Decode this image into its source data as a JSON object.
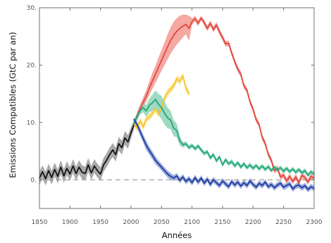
{
  "chart_data": {
    "type": "line",
    "title": "",
    "xlabel": "Années",
    "ylabel": "Emissions Compatibles (GtC par an)",
    "xlim": [
      1850,
      2300
    ],
    "ylim": [
      -5,
      30
    ],
    "x_ticks": [
      "1850",
      "1900",
      "1950",
      "2000",
      "2050",
      "2100",
      "2150",
      "2200",
      "2250",
      "2300"
    ],
    "y_ticks": [
      "0.",
      "10.",
      "20.",
      "30."
    ],
    "grid": false,
    "legend": "none",
    "zero_line": true,
    "series": [
      {
        "color": "#111111",
        "band_color": "#9a9a9a",
        "x": [
          1850,
          1855,
          1860,
          1865,
          1870,
          1875,
          1880,
          1885,
          1890,
          1895,
          1900,
          1905,
          1910,
          1915,
          1920,
          1925,
          1930,
          1935,
          1940,
          1945,
          1950,
          1955,
          1960,
          1965,
          1970,
          1975,
          1980,
          1985,
          1990,
          1995,
          2000,
          2005
        ],
        "values": [
          0.3,
          1.4,
          0.2,
          1.6,
          0.4,
          1.8,
          0.6,
          2.2,
          0.7,
          2.0,
          1.0,
          2.4,
          1.1,
          2.2,
          1.3,
          1.1,
          2.6,
          1.2,
          2.4,
          1.6,
          1.0,
          2.6,
          3.4,
          4.4,
          5.2,
          4.4,
          6.3,
          5.6,
          7.3,
          6.6,
          8.2,
          9.6
        ],
        "band_upper": [
          1.5,
          2.5,
          1.4,
          2.8,
          1.6,
          3.0,
          1.8,
          3.4,
          1.9,
          3.2,
          2.2,
          3.6,
          2.3,
          3.4,
          2.5,
          2.3,
          3.8,
          2.4,
          3.6,
          2.8,
          2.2,
          3.8,
          4.6,
          5.6,
          6.4,
          5.6,
          7.5,
          6.8,
          8.5,
          7.8,
          9.2,
          10.4
        ],
        "band_lower": [
          -0.9,
          0.3,
          -1.0,
          0.4,
          -0.8,
          0.6,
          -0.6,
          1.0,
          -0.5,
          0.8,
          -0.2,
          1.2,
          -0.1,
          1.0,
          0.1,
          -0.1,
          1.4,
          0.0,
          1.2,
          0.4,
          -0.2,
          1.4,
          2.2,
          3.2,
          4.0,
          3.2,
          5.1,
          4.4,
          6.1,
          5.4,
          7.2,
          8.8
        ]
      },
      {
        "color": "#e0473f",
        "band_color": "#f29a93",
        "x": [
          2005,
          2010,
          2015,
          2020,
          2025,
          2030,
          2035,
          2040,
          2045,
          2050,
          2055,
          2060,
          2065,
          2070,
          2075,
          2080,
          2085,
          2090,
          2095,
          2100,
          2105,
          2110,
          2115,
          2120,
          2125,
          2130,
          2135,
          2140,
          2145,
          2150,
          2155,
          2160,
          2165,
          2170,
          2175,
          2180,
          2185,
          2190,
          2195,
          2200,
          2205,
          2210,
          2215,
          2220,
          2225,
          2230,
          2235,
          2240,
          2245,
          2250,
          2255,
          2260,
          2265,
          2270,
          2275,
          2280,
          2285,
          2290,
          2295,
          2300
        ],
        "values": [
          9.8,
          11.2,
          12.4,
          13.5,
          14.6,
          16.0,
          17.2,
          18.4,
          19.6,
          20.8,
          22.0,
          23.2,
          24.3,
          25.2,
          25.9,
          26.4,
          26.8,
          27.1,
          26.4,
          27.6,
          28.1,
          27.3,
          28.2,
          27.4,
          26.4,
          27.3,
          26.2,
          27.0,
          25.8,
          24.8,
          23.7,
          23.8,
          22.1,
          20.6,
          19.3,
          18.4,
          16.4,
          15.6,
          13.6,
          12.3,
          10.5,
          9.6,
          7.4,
          6.3,
          4.4,
          3.4,
          1.6,
          2.0,
          0.5,
          0.8,
          -0.2,
          0.6,
          -0.3,
          0.5,
          -0.5,
          0.8,
          0.4,
          -0.4,
          0.6,
          0.3
        ],
        "band_upper": [
          10.2,
          11.8,
          13.2,
          14.4,
          15.6,
          17.2,
          18.6,
          19.9,
          21.3,
          22.6,
          24.0,
          25.4,
          26.6,
          27.6,
          28.2,
          28.6,
          28.8,
          28.8,
          28.6,
          28.2,
          28.6,
          27.8,
          28.6,
          27.9,
          26.9,
          27.8,
          26.7,
          27.5,
          26.3,
          25.3,
          24.2,
          24.3,
          22.6,
          21.1,
          19.8,
          18.9,
          16.9,
          16.1,
          14.1,
          12.8,
          11.0,
          10.1,
          7.9,
          6.8,
          4.9,
          3.9,
          2.1,
          2.5,
          1.0,
          1.3,
          0.3,
          1.1,
          0.2,
          1.0,
          0.0,
          1.3,
          0.9,
          0.1,
          1.1,
          0.8
        ],
        "band_lower": [
          9.4,
          10.6,
          11.6,
          12.6,
          13.6,
          14.8,
          15.8,
          16.9,
          17.9,
          19.0,
          20.0,
          21.0,
          22.0,
          22.8,
          23.6,
          24.2,
          24.8,
          25.4,
          24.2,
          27.0,
          27.6,
          26.8,
          27.8,
          26.9,
          25.9,
          26.8,
          25.7,
          26.5,
          25.3,
          24.3,
          23.2,
          23.3,
          21.6,
          20.1,
          18.8,
          17.9,
          15.9,
          15.1,
          13.1,
          11.8,
          10.0,
          9.1,
          6.9,
          5.8,
          3.9,
          2.9,
          1.1,
          1.5,
          0.0,
          0.3,
          -0.7,
          0.1,
          -0.8,
          0.0,
          -1.0,
          0.3,
          -0.1,
          -0.9,
          0.1,
          -0.2
        ]
      },
      {
        "color": "#f7c531",
        "band_color": "#fbe08a",
        "x": [
          2005,
          2010,
          2015,
          2020,
          2025,
          2030,
          2035,
          2040,
          2045,
          2050,
          2055,
          2060,
          2065,
          2070,
          2075,
          2080,
          2085,
          2090,
          2095
        ],
        "values": [
          9.8,
          9.0,
          10.3,
          9.2,
          10.6,
          11.0,
          11.5,
          12.4,
          11.5,
          12.6,
          14.2,
          15.2,
          15.8,
          16.4,
          17.6,
          17.2,
          18.1,
          16.0,
          15.0
        ],
        "band_upper": [
          10.4,
          9.6,
          10.9,
          9.8,
          11.2,
          11.6,
          12.1,
          13.0,
          12.1,
          13.2,
          14.8,
          15.8,
          16.4,
          17.0,
          18.2,
          17.8,
          18.7,
          16.6,
          15.6
        ],
        "band_lower": [
          9.2,
          8.4,
          9.7,
          8.6,
          10.0,
          10.4,
          10.9,
          11.8,
          10.9,
          12.0,
          13.6,
          14.6,
          15.2,
          15.8,
          17.0,
          16.6,
          17.5,
          15.4,
          14.4
        ]
      },
      {
        "color": "#1fa77a",
        "band_color": "#8fd4b5",
        "x": [
          2005,
          2010,
          2015,
          2020,
          2025,
          2030,
          2035,
          2040,
          2045,
          2050,
          2055,
          2060,
          2065,
          2070,
          2075,
          2080,
          2085,
          2090,
          2095,
          2100,
          2105,
          2110,
          2115,
          2120,
          2125,
          2130,
          2135,
          2140,
          2145,
          2150,
          2155,
          2160,
          2165,
          2170,
          2175,
          2180,
          2185,
          2190,
          2195,
          2200,
          2205,
          2210,
          2215,
          2220,
          2225,
          2230,
          2235,
          2240,
          2245,
          2250,
          2255,
          2260,
          2265,
          2270,
          2275,
          2280,
          2285,
          2290,
          2295,
          2300
        ],
        "values": [
          9.8,
          11.0,
          12.1,
          12.6,
          12.0,
          13.0,
          13.4,
          14.0,
          13.2,
          12.6,
          11.6,
          10.8,
          10.4,
          9.0,
          8.6,
          6.8,
          6.1,
          6.3,
          5.6,
          6.0,
          5.4,
          5.9,
          5.2,
          4.6,
          4.9,
          3.8,
          4.4,
          3.3,
          4.0,
          2.6,
          3.5,
          2.8,
          3.2,
          2.4,
          3.0,
          2.2,
          2.8,
          2.1,
          2.6,
          2.0,
          2.5,
          1.9,
          2.4,
          1.8,
          2.3,
          1.6,
          2.2,
          1.7,
          2.1,
          1.5,
          2.0,
          1.4,
          1.9,
          1.3,
          1.8,
          1.2,
          1.6,
          0.8,
          1.4,
          1.0
        ],
        "band_upper": [
          10.4,
          11.7,
          12.8,
          13.4,
          13.0,
          14.2,
          14.8,
          15.6,
          15.0,
          14.6,
          13.6,
          12.6,
          12.0,
          10.4,
          9.8,
          7.6,
          6.6,
          6.7,
          6.0,
          6.4,
          5.8,
          6.3,
          5.6,
          5.0,
          5.3,
          4.2,
          4.8,
          3.7,
          4.4,
          3.0,
          3.9,
          3.2,
          3.6,
          2.8,
          3.4,
          2.6,
          3.2,
          2.5,
          3.0,
          2.4,
          2.9,
          2.3,
          2.8,
          2.2,
          2.7,
          2.0,
          2.6,
          2.1,
          2.5,
          1.9,
          2.4,
          1.8,
          2.3,
          1.7,
          2.2,
          1.6,
          2.0,
          1.2,
          1.8,
          1.4
        ],
        "band_lower": [
          9.2,
          10.3,
          11.4,
          11.8,
          11.0,
          11.8,
          12.0,
          12.4,
          11.4,
          10.6,
          9.6,
          9.0,
          8.8,
          7.6,
          7.4,
          6.0,
          5.6,
          5.9,
          5.2,
          5.6,
          5.0,
          5.5,
          4.8,
          4.2,
          4.5,
          3.4,
          4.0,
          2.9,
          3.6,
          2.2,
          3.1,
          2.4,
          2.8,
          2.0,
          2.6,
          1.8,
          2.4,
          1.7,
          2.2,
          1.6,
          2.1,
          1.5,
          2.0,
          1.4,
          1.9,
          1.2,
          1.8,
          1.3,
          1.7,
          1.1,
          1.6,
          1.0,
          1.5,
          0.9,
          1.4,
          0.8,
          1.2,
          0.4,
          1.0,
          0.6
        ]
      },
      {
        "color": "#1c3a9e",
        "band_color": "#8ea0d8",
        "x": [
          2005,
          2010,
          2015,
          2020,
          2025,
          2030,
          2035,
          2040,
          2045,
          2050,
          2055,
          2060,
          2065,
          2070,
          2075,
          2080,
          2085,
          2090,
          2095,
          2100,
          2105,
          2110,
          2115,
          2120,
          2125,
          2130,
          2135,
          2140,
          2145,
          2150,
          2155,
          2160,
          2165,
          2170,
          2175,
          2180,
          2185,
          2190,
          2195,
          2200,
          2205,
          2210,
          2215,
          2220,
          2225,
          2230,
          2235,
          2240,
          2245,
          2250,
          2255,
          2260,
          2265,
          2270,
          2275,
          2280,
          2285,
          2290,
          2295,
          2300
        ],
        "values": [
          10.5,
          9.6,
          8.4,
          7.2,
          6.0,
          5.1,
          4.3,
          3.4,
          2.8,
          2.2,
          1.6,
          1.0,
          0.6,
          0.3,
          0.7,
          -0.1,
          0.5,
          -0.3,
          0.2,
          -0.5,
          0.4,
          -0.4,
          0.3,
          -0.6,
          0.1,
          -0.8,
          0.0,
          -0.5,
          -1.0,
          -0.2,
          -0.7,
          -1.2,
          -0.3,
          -0.9,
          -0.4,
          -1.1,
          -0.5,
          -1.0,
          -0.2,
          -0.8,
          -1.3,
          -0.6,
          -1.0,
          -0.4,
          -1.2,
          -0.8,
          -1.4,
          -0.9,
          -0.6,
          -1.3,
          -1.0,
          -0.7,
          -1.6,
          -1.1,
          -0.9,
          -1.4,
          -1.0,
          -1.7,
          -1.2,
          -1.5
        ],
        "band_upper": [
          11.0,
          10.2,
          9.1,
          7.9,
          6.8,
          5.8,
          5.0,
          4.1,
          3.4,
          2.8,
          2.2,
          1.6,
          1.2,
          0.8,
          1.2,
          0.4,
          1.0,
          0.2,
          0.7,
          0.0,
          0.9,
          0.1,
          0.8,
          -0.1,
          0.6,
          -0.3,
          0.5,
          0.0,
          -0.5,
          0.3,
          -0.2,
          -0.7,
          0.2,
          -0.4,
          0.1,
          -0.6,
          0.0,
          -0.5,
          0.3,
          -0.3,
          -0.8,
          -0.1,
          -0.5,
          0.1,
          -0.7,
          -0.3,
          -0.9,
          -0.4,
          -0.1,
          -0.8,
          -0.5,
          -0.2,
          -1.1,
          -0.6,
          -0.4,
          -0.9,
          -0.5,
          -1.2,
          -0.7,
          -1.0
        ],
        "band_lower": [
          10.0,
          9.0,
          7.7,
          6.5,
          5.2,
          4.4,
          3.6,
          2.7,
          2.2,
          1.6,
          1.0,
          0.4,
          0.0,
          -0.2,
          0.2,
          -0.6,
          0.0,
          -0.8,
          -0.3,
          -1.0,
          -0.1,
          -0.9,
          -0.2,
          -1.1,
          -0.4,
          -1.3,
          -0.5,
          -1.0,
          -1.5,
          -0.7,
          -1.2,
          -1.7,
          -0.8,
          -1.4,
          -0.9,
          -1.6,
          -1.0,
          -1.5,
          -0.7,
          -1.3,
          -1.8,
          -1.1,
          -1.5,
          -0.9,
          -1.7,
          -1.3,
          -1.9,
          -1.4,
          -1.1,
          -1.8,
          -1.5,
          -1.2,
          -2.1,
          -1.6,
          -1.4,
          -1.9,
          -1.5,
          -2.2,
          -1.7,
          -2.0
        ]
      }
    ]
  }
}
